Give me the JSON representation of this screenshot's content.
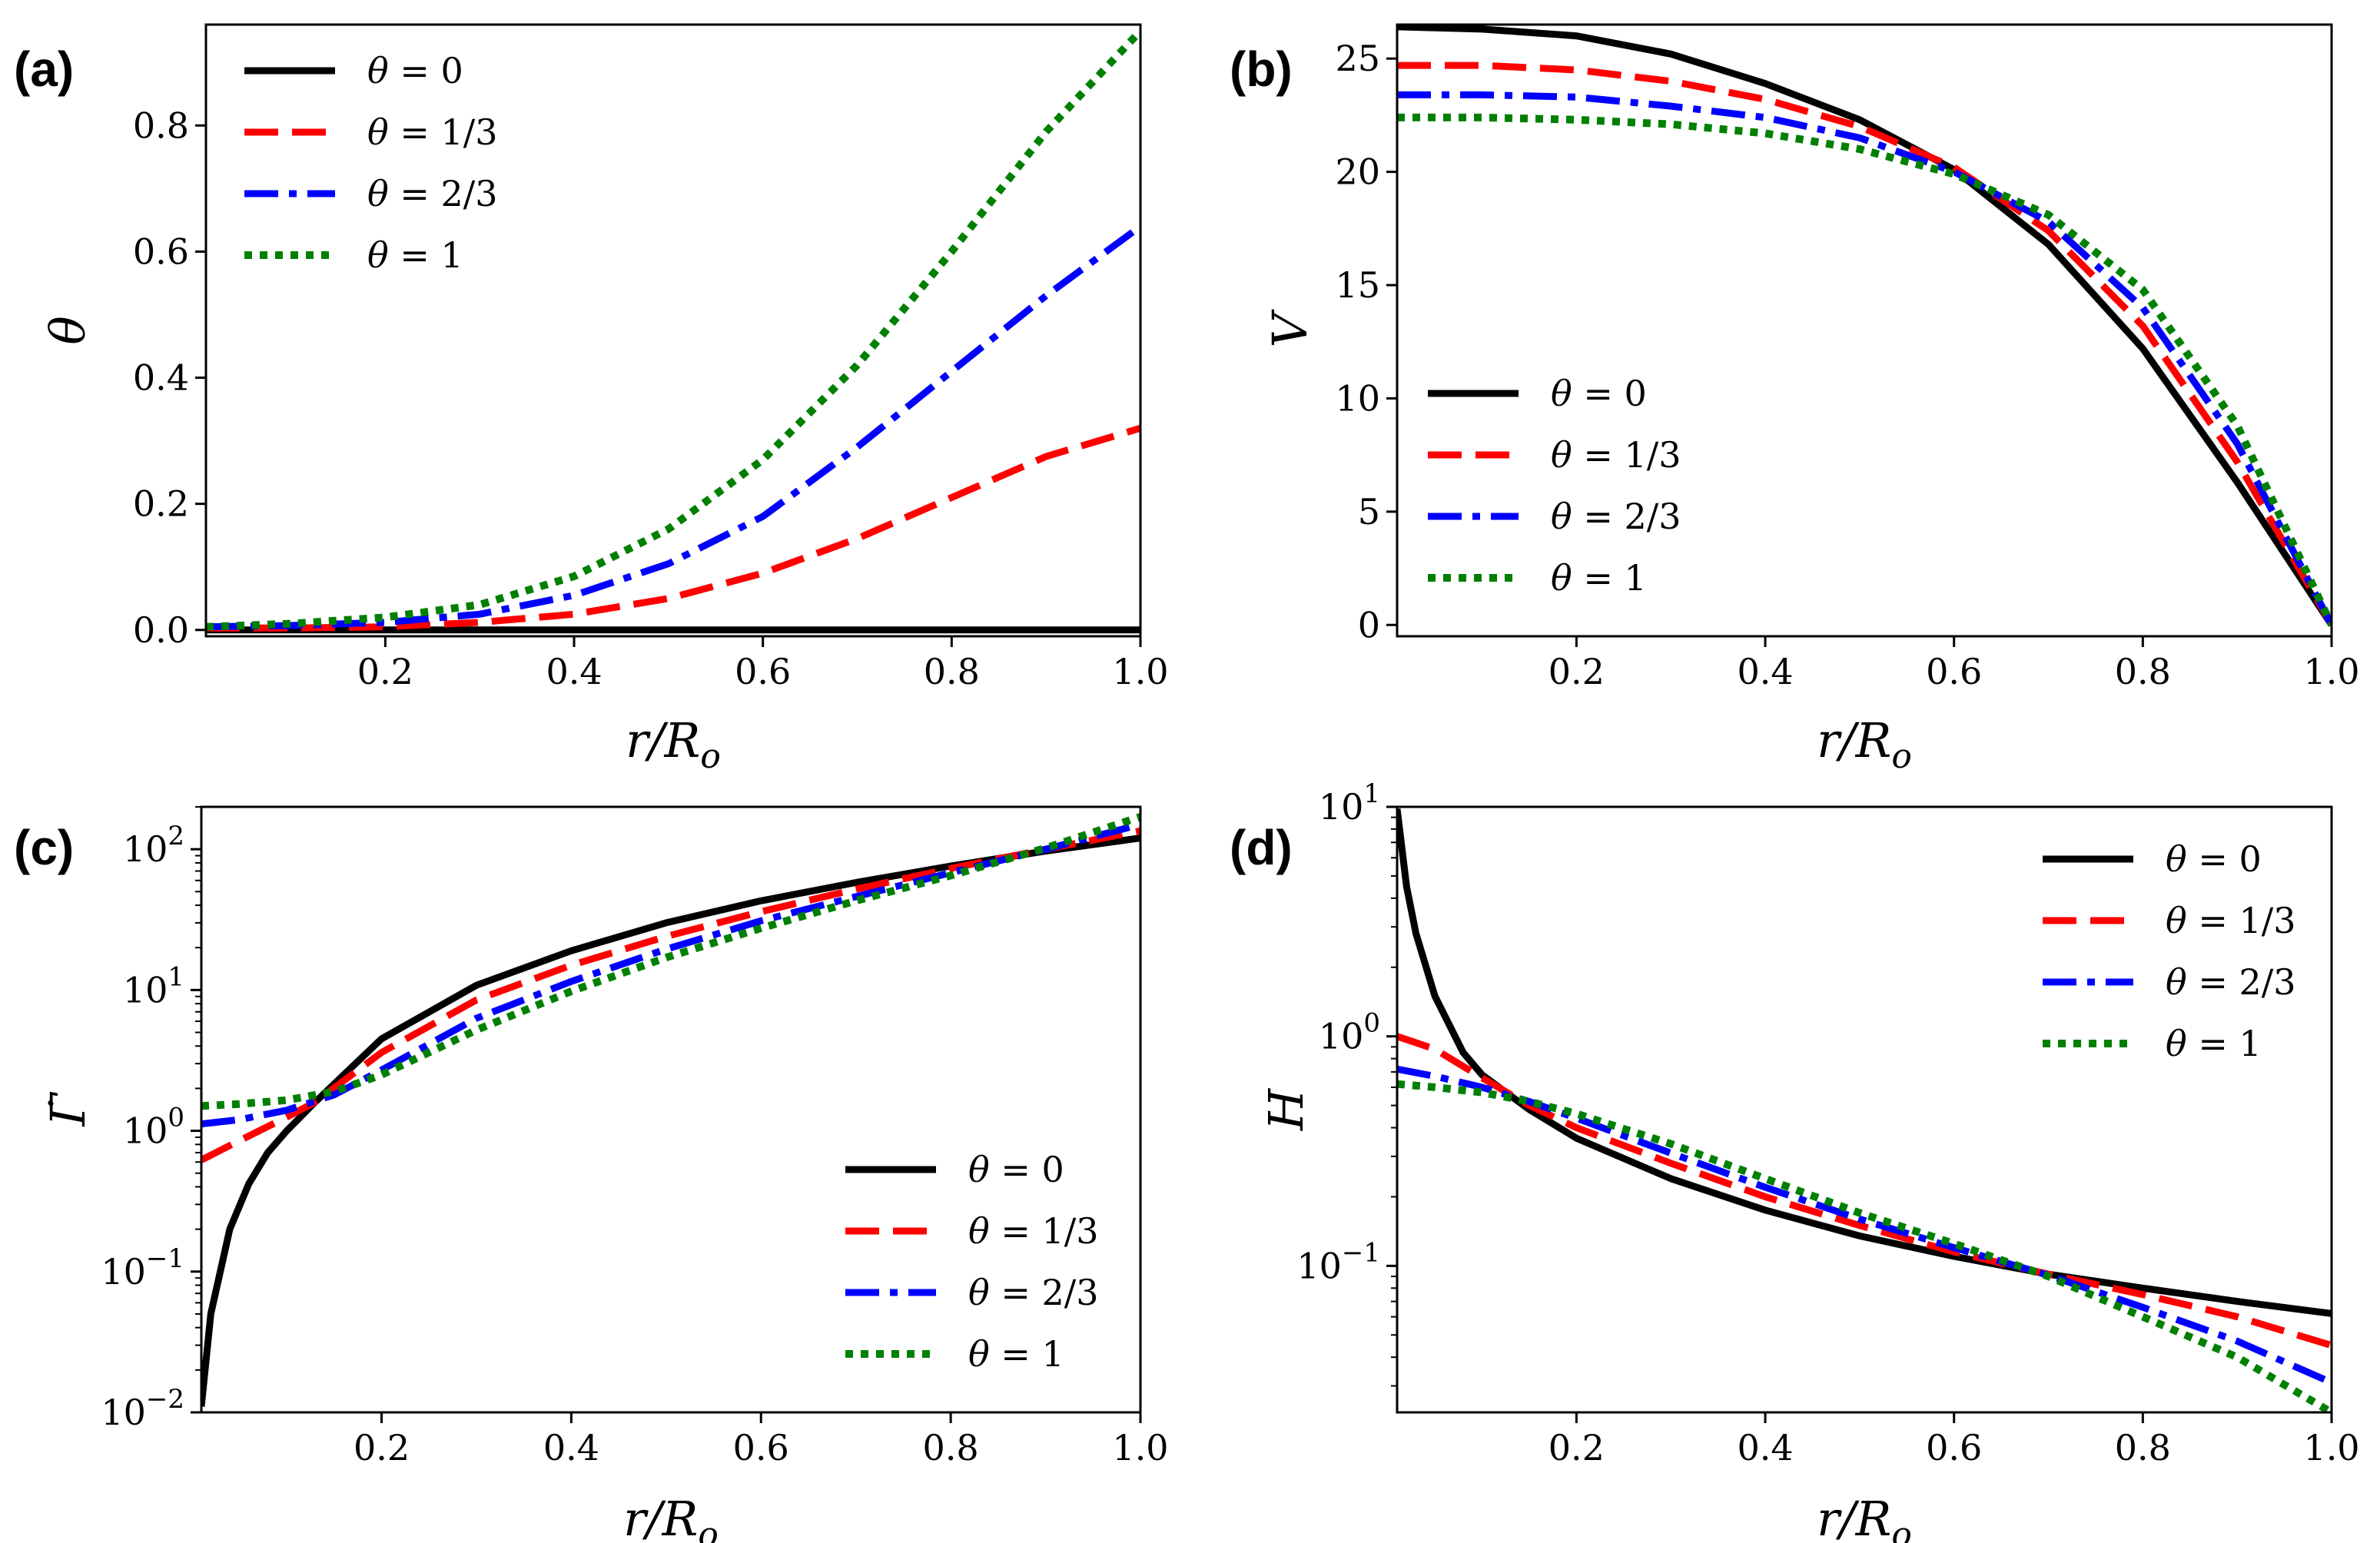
{
  "chart_data": [
    {
      "panel": "(a)",
      "type": "line",
      "xlabel": "r/R_o",
      "ylabel": "θ",
      "xlim": [
        0.01,
        1.0
      ],
      "ylim": [
        -0.01,
        0.96
      ],
      "yscale": "linear",
      "xticks": [
        0.2,
        0.4,
        0.6,
        0.8,
        1.0
      ],
      "yticks": [
        0.0,
        0.2,
        0.4,
        0.6,
        0.8
      ],
      "xtick_labels": [
        "0.2",
        "0.4",
        "0.6",
        "0.8",
        "1.0"
      ],
      "ytick_labels": [
        "0.0",
        "0.2",
        "0.4",
        "0.6",
        "0.8"
      ],
      "legend_position": "top-left",
      "series": [
        {
          "name": "θ = 0",
          "color": "#000000",
          "style": "solid",
          "x": [
            0.01,
            0.2,
            0.4,
            0.6,
            0.8,
            1.0
          ],
          "y": [
            0.0,
            0.0,
            0.0,
            0.0,
            0.0,
            0.0
          ]
        },
        {
          "name": "θ = 1/3",
          "color": "#ff0000",
          "style": "dashed",
          "x": [
            0.01,
            0.1,
            0.2,
            0.3,
            0.4,
            0.5,
            0.6,
            0.7,
            0.8,
            0.9,
            1.0
          ],
          "y": [
            0.003,
            0.003,
            0.005,
            0.012,
            0.025,
            0.05,
            0.09,
            0.145,
            0.21,
            0.275,
            0.32
          ]
        },
        {
          "name": "θ = 2/3",
          "color": "#0000ff",
          "style": "dashdot",
          "x": [
            0.01,
            0.1,
            0.2,
            0.3,
            0.4,
            0.5,
            0.6,
            0.7,
            0.8,
            0.9,
            1.0
          ],
          "y": [
            0.005,
            0.007,
            0.012,
            0.025,
            0.055,
            0.105,
            0.18,
            0.29,
            0.41,
            0.53,
            0.64
          ]
        },
        {
          "name": "θ = 1",
          "color": "#008000",
          "style": "dotted",
          "x": [
            0.01,
            0.1,
            0.2,
            0.3,
            0.4,
            0.5,
            0.6,
            0.7,
            0.8,
            0.9,
            1.0
          ],
          "y": [
            0.005,
            0.01,
            0.02,
            0.04,
            0.085,
            0.16,
            0.27,
            0.42,
            0.6,
            0.79,
            0.95
          ]
        }
      ]
    },
    {
      "panel": "(b)",
      "type": "line",
      "xlabel": "r/R_o",
      "ylabel": "V",
      "xlim": [
        0.01,
        1.0
      ],
      "ylim": [
        -0.5,
        26.5
      ],
      "yscale": "linear",
      "xticks": [
        0.2,
        0.4,
        0.6,
        0.8,
        1.0
      ],
      "yticks": [
        0,
        5,
        10,
        15,
        20,
        25
      ],
      "xtick_labels": [
        "0.2",
        "0.4",
        "0.6",
        "0.8",
        "1.0"
      ],
      "ytick_labels": [
        "0",
        "5",
        "10",
        "15",
        "20",
        "25"
      ],
      "legend_position": "center-left",
      "series": [
        {
          "name": "θ = 0",
          "color": "#000000",
          "style": "solid",
          "x": [
            0.01,
            0.1,
            0.2,
            0.3,
            0.4,
            0.5,
            0.6,
            0.7,
            0.8,
            0.9,
            1.0
          ],
          "y": [
            26.4,
            26.3,
            26.0,
            25.2,
            23.9,
            22.3,
            20.1,
            16.8,
            12.2,
            6.3,
            0.0
          ]
        },
        {
          "name": "θ = 1/3",
          "color": "#ff0000",
          "style": "dashed",
          "x": [
            0.01,
            0.1,
            0.2,
            0.3,
            0.4,
            0.5,
            0.6,
            0.7,
            0.8,
            0.9,
            1.0
          ],
          "y": [
            24.7,
            24.7,
            24.5,
            24.0,
            23.2,
            22.0,
            20.2,
            17.4,
            13.2,
            7.2,
            0.0
          ]
        },
        {
          "name": "θ = 2/3",
          "color": "#0000ff",
          "style": "dashdot",
          "x": [
            0.01,
            0.1,
            0.2,
            0.3,
            0.4,
            0.5,
            0.6,
            0.7,
            0.8,
            0.9,
            1.0
          ],
          "y": [
            23.4,
            23.4,
            23.3,
            22.9,
            22.4,
            21.5,
            20.0,
            17.8,
            14.0,
            8.0,
            0.0
          ]
        },
        {
          "name": "θ = 1",
          "color": "#008000",
          "style": "dotted",
          "x": [
            0.01,
            0.1,
            0.2,
            0.3,
            0.4,
            0.5,
            0.6,
            0.7,
            0.8,
            0.9,
            1.0
          ],
          "y": [
            22.4,
            22.4,
            22.3,
            22.1,
            21.7,
            21.0,
            19.9,
            18.1,
            14.8,
            8.8,
            0.0
          ]
        }
      ]
    },
    {
      "panel": "(c)",
      "type": "line",
      "xlabel": "r/R_o",
      "ylabel": "Γ̇",
      "xlim": [
        0.01,
        1.0
      ],
      "ylim": [
        0.01,
        200
      ],
      "yscale": "log",
      "xticks": [
        0.2,
        0.4,
        0.6,
        0.8,
        1.0
      ],
      "yticks": [
        0.01,
        0.1,
        1,
        10,
        100
      ],
      "xtick_labels": [
        "0.2",
        "0.4",
        "0.6",
        "0.8",
        "1.0"
      ],
      "ytick_labels": [
        "10^-2",
        "10^-1",
        "10^0",
        "10^1",
        "10^2"
      ],
      "legend_position": "bottom-right",
      "series": [
        {
          "name": "θ = 0",
          "color": "#000000",
          "style": "solid",
          "x": [
            0.01,
            0.02,
            0.04,
            0.06,
            0.08,
            0.1,
            0.13,
            0.2,
            0.3,
            0.4,
            0.5,
            0.6,
            0.7,
            0.8,
            0.9,
            1.0
          ],
          "y": [
            0.011,
            0.05,
            0.2,
            0.42,
            0.7,
            1.0,
            1.6,
            4.5,
            10.8,
            19.0,
            30.0,
            43.0,
            58.0,
            76.0,
            97.0,
            120.0
          ]
        },
        {
          "name": "θ = 1/3",
          "color": "#ff0000",
          "style": "dashed",
          "x": [
            0.01,
            0.05,
            0.1,
            0.13,
            0.2,
            0.3,
            0.4,
            0.5,
            0.6,
            0.7,
            0.8,
            0.9,
            1.0
          ],
          "y": [
            0.62,
            0.85,
            1.25,
            1.6,
            3.6,
            8.5,
            15.0,
            24.0,
            36.0,
            52.0,
            73.0,
            100.0,
            135.0
          ]
        },
        {
          "name": "θ = 2/3",
          "color": "#0000ff",
          "style": "dashdot",
          "x": [
            0.01,
            0.05,
            0.1,
            0.15,
            0.2,
            0.3,
            0.4,
            0.5,
            0.6,
            0.7,
            0.8,
            0.9,
            1.0
          ],
          "y": [
            1.12,
            1.2,
            1.4,
            1.8,
            2.7,
            6.3,
            11.5,
            19.5,
            31.0,
            46.0,
            68.0,
            100.0,
            150.0
          ]
        },
        {
          "name": "θ = 1",
          "color": "#008000",
          "style": "dotted",
          "x": [
            0.01,
            0.05,
            0.1,
            0.15,
            0.2,
            0.3,
            0.4,
            0.5,
            0.6,
            0.7,
            0.8,
            0.9,
            1.0
          ],
          "y": [
            1.5,
            1.55,
            1.65,
            1.9,
            2.5,
            5.2,
            9.8,
            17.0,
            27.5,
            43.0,
            65.0,
            102.0,
            170.0
          ]
        }
      ]
    },
    {
      "panel": "(d)",
      "type": "line",
      "xlabel": "r/R_o",
      "ylabel": "H",
      "xlim": [
        0.01,
        1.0
      ],
      "ylim": [
        0.023,
        10
      ],
      "yscale": "log",
      "xticks": [
        0.2,
        0.4,
        0.6,
        0.8,
        1.0
      ],
      "yticks": [
        0.1,
        1,
        10
      ],
      "xtick_labels": [
        "0.2",
        "0.4",
        "0.6",
        "0.8",
        "1.0"
      ],
      "ytick_labels": [
        "10^-1",
        "10^0",
        "10^1"
      ],
      "legend_position": "top-right",
      "series": [
        {
          "name": "θ = 0",
          "color": "#000000",
          "style": "solid",
          "x": [
            0.01,
            0.02,
            0.03,
            0.05,
            0.08,
            0.1,
            0.15,
            0.2,
            0.3,
            0.4,
            0.5,
            0.6,
            0.7,
            0.8,
            0.9,
            1.0
          ],
          "y": [
            9.8,
            4.5,
            2.8,
            1.5,
            0.85,
            0.68,
            0.48,
            0.36,
            0.24,
            0.175,
            0.135,
            0.11,
            0.092,
            0.08,
            0.07,
            0.062
          ]
        },
        {
          "name": "θ = 1/3",
          "color": "#ff0000",
          "style": "dashed",
          "x": [
            0.01,
            0.05,
            0.1,
            0.15,
            0.2,
            0.3,
            0.4,
            0.5,
            0.6,
            0.7,
            0.8,
            0.9,
            1.0
          ],
          "y": [
            1.0,
            0.88,
            0.66,
            0.5,
            0.4,
            0.28,
            0.2,
            0.15,
            0.115,
            0.092,
            0.075,
            0.06,
            0.045
          ]
        },
        {
          "name": "θ = 2/3",
          "color": "#0000ff",
          "style": "dashdot",
          "x": [
            0.01,
            0.05,
            0.1,
            0.15,
            0.2,
            0.3,
            0.4,
            0.5,
            0.6,
            0.7,
            0.8,
            0.9,
            1.0
          ],
          "y": [
            0.72,
            0.67,
            0.6,
            0.52,
            0.44,
            0.31,
            0.22,
            0.16,
            0.12,
            0.091,
            0.066,
            0.047,
            0.031
          ]
        },
        {
          "name": "θ = 1",
          "color": "#008000",
          "style": "dotted",
          "x": [
            0.01,
            0.05,
            0.1,
            0.15,
            0.2,
            0.3,
            0.4,
            0.5,
            0.6,
            0.7,
            0.8,
            0.9,
            1.0
          ],
          "y": [
            0.62,
            0.6,
            0.57,
            0.52,
            0.46,
            0.34,
            0.24,
            0.17,
            0.125,
            0.09,
            0.06,
            0.04,
            0.023
          ]
        }
      ]
    }
  ]
}
